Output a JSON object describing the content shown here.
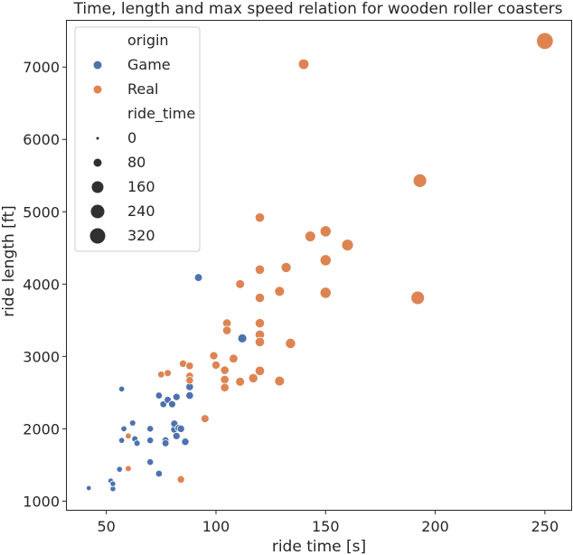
{
  "chart_data": {
    "type": "scatter",
    "title": "Time, length and max speed relation for wooden roller coasters",
    "xlabel": "ride time [s]",
    "ylabel": "ride length [ft]",
    "xlim": [
      32,
      262
    ],
    "ylim": [
      880,
      7640
    ],
    "xticks": [
      50,
      100,
      150,
      200,
      250
    ],
    "yticks": [
      1000,
      2000,
      3000,
      4000,
      5000,
      6000,
      7000
    ],
    "grid": false,
    "legend": {
      "placement": "top-left",
      "hue_title": "origin",
      "hue_entries": [
        {
          "label": "Game",
          "color": "#4c72b0"
        },
        {
          "label": "Real",
          "color": "#dd8452"
        }
      ],
      "size_title": "ride_time",
      "size_entries": [
        {
          "label": "0",
          "value": 0
        },
        {
          "label": "80",
          "value": 80
        },
        {
          "label": "160",
          "value": 160
        },
        {
          "label": "240",
          "value": 240
        },
        {
          "label": "320",
          "value": 320
        }
      ]
    },
    "size_encoding": "ride_time",
    "series": [
      {
        "name": "Game",
        "color": "#4c72b0",
        "points": [
          [
            42,
            1180
          ],
          [
            52,
            1280
          ],
          [
            53,
            1170
          ],
          [
            53,
            1240
          ],
          [
            56,
            1440
          ],
          [
            57,
            2550
          ],
          [
            57,
            1840
          ],
          [
            58,
            2000
          ],
          [
            60,
            1900
          ],
          [
            62,
            2080
          ],
          [
            63,
            1860
          ],
          [
            64,
            1800
          ],
          [
            70,
            1540
          ],
          [
            70,
            2000
          ],
          [
            70,
            1840
          ],
          [
            74,
            1380
          ],
          [
            74,
            2460
          ],
          [
            76,
            2340
          ],
          [
            77,
            1840
          ],
          [
            77,
            1800
          ],
          [
            78,
            2400
          ],
          [
            80,
            2340
          ],
          [
            81,
            1990
          ],
          [
            81,
            2070
          ],
          [
            82,
            1900
          ],
          [
            82,
            2440
          ],
          [
            83,
            2010
          ],
          [
            84,
            2000
          ],
          [
            86,
            1820
          ],
          [
            88,
            2460
          ],
          [
            88,
            2580
          ],
          [
            92,
            4090
          ],
          [
            112,
            3250
          ]
        ]
      },
      {
        "name": "Real",
        "color": "#dd8452",
        "points": [
          [
            60,
            1900
          ],
          [
            60,
            1450
          ],
          [
            75,
            2750
          ],
          [
            78,
            2770
          ],
          [
            84,
            1300
          ],
          [
            85,
            2900
          ],
          [
            88,
            2870
          ],
          [
            88,
            2730
          ],
          [
            88,
            2670
          ],
          [
            95,
            2140
          ],
          [
            99,
            3010
          ],
          [
            100,
            2880
          ],
          [
            104,
            2810
          ],
          [
            104,
            2680
          ],
          [
            104,
            2570
          ],
          [
            105,
            3460
          ],
          [
            105,
            3360
          ],
          [
            108,
            2970
          ],
          [
            111,
            4000
          ],
          [
            111,
            2650
          ],
          [
            117,
            2700
          ],
          [
            120,
            4920
          ],
          [
            120,
            4200
          ],
          [
            120,
            3810
          ],
          [
            120,
            3460
          ],
          [
            120,
            3300
          ],
          [
            120,
            3200
          ],
          [
            120,
            2800
          ],
          [
            129,
            3900
          ],
          [
            129,
            2660
          ],
          [
            132,
            4230
          ],
          [
            134,
            3180
          ],
          [
            140,
            7040
          ],
          [
            143,
            4660
          ],
          [
            150,
            4730
          ],
          [
            150,
            4330
          ],
          [
            150,
            3880
          ],
          [
            160,
            4540
          ],
          [
            192,
            3810
          ],
          [
            193,
            5430
          ],
          [
            250,
            7360
          ]
        ]
      }
    ]
  }
}
